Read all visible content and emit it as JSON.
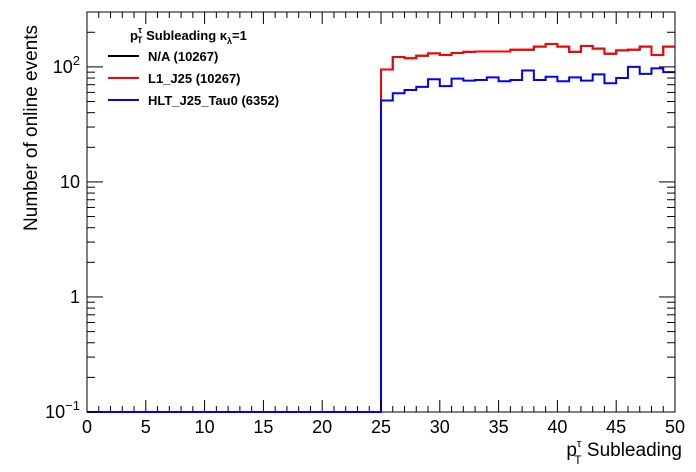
{
  "chart_data": {
    "type": "line",
    "style": "step-histogram",
    "ylabel": "Number of online events",
    "xlabel": {
      "main": "p",
      "sup": "τ",
      "sub": "T",
      "rest": " Subleading"
    },
    "legend_header": {
      "p": "p",
      "sup": "τ",
      "sub": "T",
      "mid": " Subleading  κ",
      "kappa_sub": "λ",
      "tail": "=1"
    },
    "legend_placement": "top-left",
    "y_scale": "log",
    "xlim": [
      0,
      50
    ],
    "ylim": [
      0.1,
      300
    ],
    "x_ticks": [
      "0",
      "5",
      "10",
      "15",
      "20",
      "25",
      "30",
      "35",
      "40",
      "45",
      "50"
    ],
    "y_ticks": [
      {
        "value": 0.1,
        "base": "10",
        "exp": "−1"
      },
      {
        "value": 1,
        "label": "1"
      },
      {
        "value": 10,
        "label": "10"
      },
      {
        "value": 100,
        "base": "10",
        "exp": "2"
      }
    ],
    "bin_edges_start": 0,
    "bin_width": 1,
    "series": [
      {
        "name": "N/A (10267)",
        "color": "#000000",
        "values": [
          0.1,
          0.1,
          0.1,
          0.1,
          0.1,
          0.1,
          0.1,
          0.1,
          0.1,
          0.1,
          0.1,
          0.1,
          0.1,
          0.1,
          0.1,
          0.1,
          0.1,
          0.1,
          0.1,
          0.1,
          0.1,
          0.1,
          0.1,
          0.1,
          0.1,
          95,
          122,
          119,
          125,
          131,
          127,
          132,
          135,
          136,
          136,
          136,
          141,
          141,
          150,
          158,
          150,
          135,
          152,
          144,
          130,
          139,
          141,
          150,
          127,
          150
        ]
      },
      {
        "name": "L1_J25 (10267)",
        "color": "#ff0000",
        "values": [
          0.1,
          0.1,
          0.1,
          0.1,
          0.1,
          0.1,
          0.1,
          0.1,
          0.1,
          0.1,
          0.1,
          0.1,
          0.1,
          0.1,
          0.1,
          0.1,
          0.1,
          0.1,
          0.1,
          0.1,
          0.1,
          0.1,
          0.1,
          0.1,
          0.1,
          95,
          122,
          119,
          125,
          131,
          127,
          132,
          135,
          136,
          136,
          136,
          141,
          141,
          150,
          158,
          150,
          135,
          152,
          144,
          130,
          139,
          141,
          150,
          127,
          150
        ]
      },
      {
        "name": "HLT_J25_Tau0 (6352)",
        "color": "#0000ff",
        "values": [
          0.1,
          0.1,
          0.1,
          0.1,
          0.1,
          0.1,
          0.1,
          0.1,
          0.1,
          0.1,
          0.1,
          0.1,
          0.1,
          0.1,
          0.1,
          0.1,
          0.1,
          0.1,
          0.1,
          0.1,
          0.1,
          0.1,
          0.1,
          0.1,
          0.1,
          51,
          59,
          63,
          67,
          78,
          68,
          79,
          76,
          77,
          81,
          75,
          77,
          93,
          77,
          82,
          75,
          81,
          76,
          86,
          72,
          80,
          100,
          87,
          97,
          90
        ]
      }
    ]
  }
}
